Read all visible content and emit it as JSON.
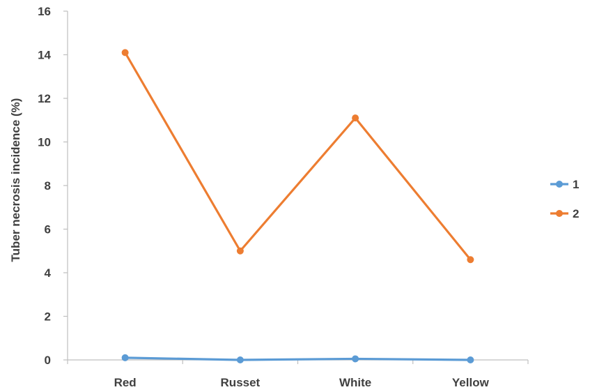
{
  "chart_data": {
    "type": "line",
    "title": "",
    "xlabel": "",
    "ylabel": "Tuber necrosis incidence (%)",
    "categories": [
      "Red",
      "Russet",
      "White",
      "Yellow"
    ],
    "y_ticks": [
      "0",
      "2",
      "4",
      "6",
      "8",
      "10",
      "12",
      "14",
      "16"
    ],
    "ylim": [
      0,
      16
    ],
    "grid": false,
    "legend_position": "right",
    "series": [
      {
        "name": "1",
        "values": [
          0.1,
          0.0,
          0.05,
          0.0
        ],
        "color": "#5B9BD5"
      },
      {
        "name": "2",
        "values": [
          14.1,
          5.0,
          11.1,
          4.6
        ],
        "color": "#ED7D31"
      }
    ]
  }
}
